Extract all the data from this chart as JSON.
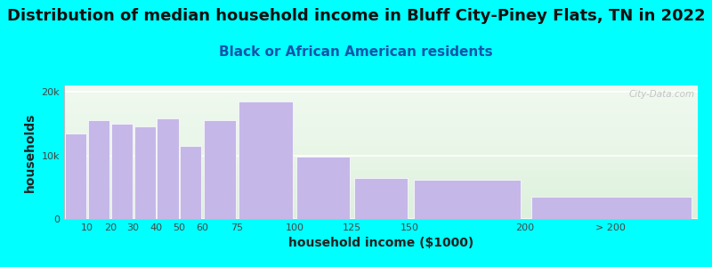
{
  "title": "Distribution of median household income in Bluff City-Piney Flats, TN in 2022",
  "subtitle": "Black or African American residents",
  "xlabel": "household income ($1000)",
  "ylabel": "households",
  "bar_labels": [
    "10",
    "20",
    "30",
    "40",
    "50",
    "60",
    "75",
    "100",
    "125",
    "150",
    "200",
    "> 200"
  ],
  "bar_values": [
    13500,
    15500,
    15000,
    14500,
    15800,
    11500,
    15500,
    18500,
    9800,
    6500,
    6200,
    3500
  ],
  "bar_color": "#c5b8e8",
  "background_color": "#00ffff",
  "plot_bg_gradient_top": "#e8f5e9",
  "plot_bg_gradient_bottom": "#ffffff",
  "ytick_labels": [
    "0",
    "10k",
    "20k"
  ],
  "ytick_values": [
    0,
    10000,
    20000
  ],
  "ylim": [
    0,
    21000
  ],
  "title_fontsize": 13,
  "subtitle_fontsize": 11,
  "axis_label_fontsize": 10,
  "tick_fontsize": 8,
  "watermark_text": "City-Data.com",
  "left_edges": [
    0,
    10,
    20,
    30,
    40,
    50,
    60,
    75,
    100,
    125,
    150,
    200
  ],
  "bar_widths": [
    10,
    10,
    10,
    10,
    10,
    10,
    15,
    25,
    25,
    25,
    50,
    75
  ],
  "xtick_positions": [
    10,
    20,
    30,
    40,
    50,
    60,
    75,
    100,
    125,
    150,
    200,
    237
  ],
  "xtick_labels": [
    "10",
    "20",
    "30",
    "40",
    "50",
    "60",
    "75",
    "100",
    "125",
    "150",
    "200",
    "> 200"
  ],
  "xlim": [
    0,
    275
  ]
}
